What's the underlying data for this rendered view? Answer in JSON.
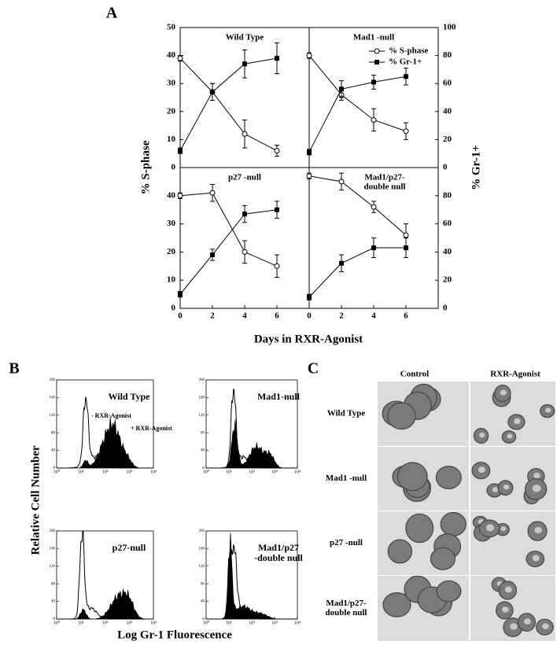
{
  "panel_labels": [
    "A",
    "B",
    "C"
  ],
  "panel_a": {
    "x_label": "Days in RXR-Agonist",
    "y_label": "% S-phase",
    "y2_label": "% Gr-1+"
  },
  "chart_data": [
    {
      "type": "line",
      "title": [
        "Wild Type"
      ],
      "x": [
        0,
        2,
        4,
        6
      ],
      "xlim": [
        0,
        8
      ],
      "ylim": [
        0,
        50
      ],
      "yticks": [
        0,
        10,
        20,
        30,
        40,
        50
      ],
      "y2lim": [
        0,
        100
      ],
      "series": [
        {
          "name": "% S-phase",
          "color": "#000000",
          "marker": "open-circle",
          "values": [
            39,
            27,
            12,
            6
          ],
          "errors": [
            1,
            3,
            5,
            2
          ]
        },
        {
          "name": "% Gr-1+",
          "color": "#000000",
          "marker": "filled-square",
          "axis": "y2",
          "values": [
            12,
            54,
            74,
            78
          ],
          "errors": [
            2,
            6,
            10,
            11
          ]
        }
      ]
    },
    {
      "type": "line",
      "title": [
        "Mad1 -null"
      ],
      "x": [
        0,
        2,
        4,
        6
      ],
      "xlim": [
        0,
        8
      ],
      "ylim": [
        0,
        50
      ],
      "y2lim": [
        0,
        100
      ],
      "y2ticks": [
        0,
        20,
        40,
        60,
        80,
        100
      ],
      "legend": "upper right",
      "series": [
        {
          "name": "% S-phase",
          "color": "#000000",
          "marker": "open-circle",
          "values": [
            40,
            26,
            17,
            13
          ],
          "errors": [
            1,
            2,
            4,
            3
          ]
        },
        {
          "name": "% Gr-1+",
          "color": "#000000",
          "marker": "filled-square",
          "axis": "y2",
          "values": [
            11,
            56,
            61,
            65
          ],
          "errors": [
            2,
            6,
            5,
            6
          ]
        }
      ]
    },
    {
      "type": "line",
      "title": [
        "p27 -null"
      ],
      "x": [
        0,
        2,
        4,
        6
      ],
      "xlim": [
        0,
        8
      ],
      "xticks": [
        0,
        2,
        4,
        6
      ],
      "ylim": [
        0,
        50
      ],
      "yticks": [
        0,
        10,
        20,
        30,
        40
      ],
      "y2lim": [
        0,
        100
      ],
      "series": [
        {
          "name": "% S-phase",
          "color": "#000000",
          "marker": "open-circle",
          "values": [
            40,
            41,
            20,
            15
          ],
          "errors": [
            1,
            3,
            4,
            4
          ]
        },
        {
          "name": "% Gr-1+",
          "color": "#000000",
          "marker": "filled-square",
          "axis": "y2",
          "values": [
            10,
            38,
            67,
            70
          ],
          "errors": [
            2,
            4,
            6,
            6
          ]
        }
      ]
    },
    {
      "type": "line",
      "title": [
        "Mad1/p27-",
        "double null"
      ],
      "x": [
        0,
        2,
        4,
        6
      ],
      "xlim": [
        0,
        8
      ],
      "xticks": [
        0,
        2,
        4,
        6
      ],
      "ylim": [
        0,
        50
      ],
      "y2lim": [
        0,
        100
      ],
      "y2ticks": [
        0,
        20,
        40,
        60,
        80
      ],
      "series": [
        {
          "name": "% S-phase",
          "color": "#000000",
          "marker": "open-circle",
          "values": [
            47,
            45,
            36,
            26
          ],
          "errors": [
            1,
            3,
            2,
            4
          ]
        },
        {
          "name": "% Gr-1+",
          "color": "#000000",
          "marker": "filled-square",
          "axis": "y2",
          "values": [
            8,
            32,
            43,
            43
          ],
          "errors": [
            2,
            6,
            7,
            7
          ]
        }
      ]
    }
  ],
  "panel_b": {
    "y_label": "Relative Cell Number",
    "x_label": "Log Gr-1 Fluorescence",
    "xlim": [
      0,
      4
    ],
    "xticks": [
      {
        "value": 0,
        "label": "10⁰"
      },
      {
        "value": 1,
        "label": "10¹"
      },
      {
        "value": 2,
        "label": "10²"
      },
      {
        "value": 3,
        "label": "10³"
      },
      {
        "value": 4,
        "label": "10⁴"
      }
    ],
    "ylim": [
      0,
      200
    ],
    "yticks": [
      0,
      40,
      80,
      120,
      160,
      200
    ],
    "histograms": [
      {
        "title": [
          "Wild Type"
        ],
        "annotations": [
          "- RXR-Agonist",
          "+ RXR-Agonist"
        ]
      },
      {
        "title": [
          "Mad1-null"
        ]
      },
      {
        "title": [
          "p27-null"
        ]
      },
      {
        "title": [
          "Mad1/p27",
          "-double null"
        ]
      }
    ]
  },
  "panel_c": {
    "columns": [
      "Control",
      "RXR-Agonist"
    ],
    "rows": [
      [
        "Wild Type"
      ],
      [
        "Mad1 -null"
      ],
      [
        "p27 -null"
      ],
      [
        "Mad1/p27-",
        "double null"
      ]
    ]
  }
}
